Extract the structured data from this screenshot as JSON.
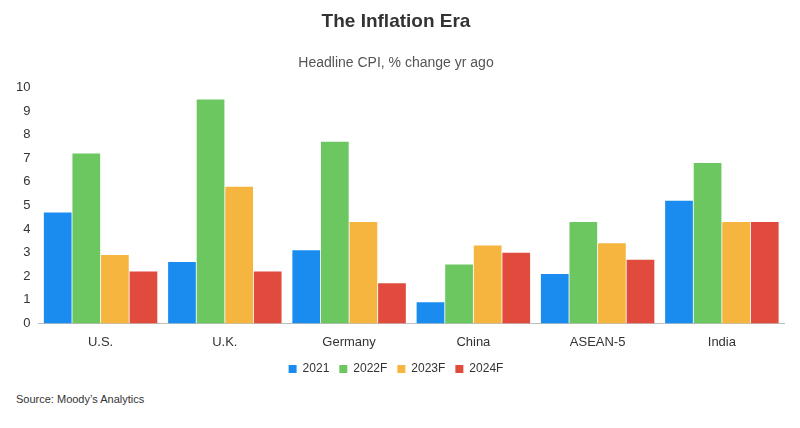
{
  "chart_data": {
    "type": "bar",
    "title": "The Inflation Era",
    "subtitle": "Headline CPI, % change yr ago",
    "source": "Source: Moody’s Analytics",
    "categories": [
      "U.S.",
      "U.K.",
      "Germany",
      "China",
      "ASEAN-5",
      "India"
    ],
    "series": [
      {
        "name": "2021",
        "color": "#1a8cf0",
        "values": [
          4.7,
          2.6,
          3.1,
          0.9,
          2.1,
          5.2
        ]
      },
      {
        "name": "2022F",
        "color": "#6cc760",
        "values": [
          7.2,
          9.5,
          7.7,
          2.5,
          4.3,
          6.8
        ]
      },
      {
        "name": "2023F",
        "color": "#f5b53f",
        "values": [
          2.9,
          5.8,
          4.3,
          3.3,
          3.4,
          4.3
        ]
      },
      {
        "name": "2024F",
        "color": "#e14b3d",
        "values": [
          2.2,
          2.2,
          1.7,
          3.0,
          2.7,
          4.3
        ]
      }
    ],
    "ylim": [
      0,
      10
    ],
    "yticks": [
      0,
      1,
      2,
      3,
      4,
      5,
      6,
      7,
      8,
      9,
      10
    ],
    "grid": false,
    "legend": "bottom"
  }
}
